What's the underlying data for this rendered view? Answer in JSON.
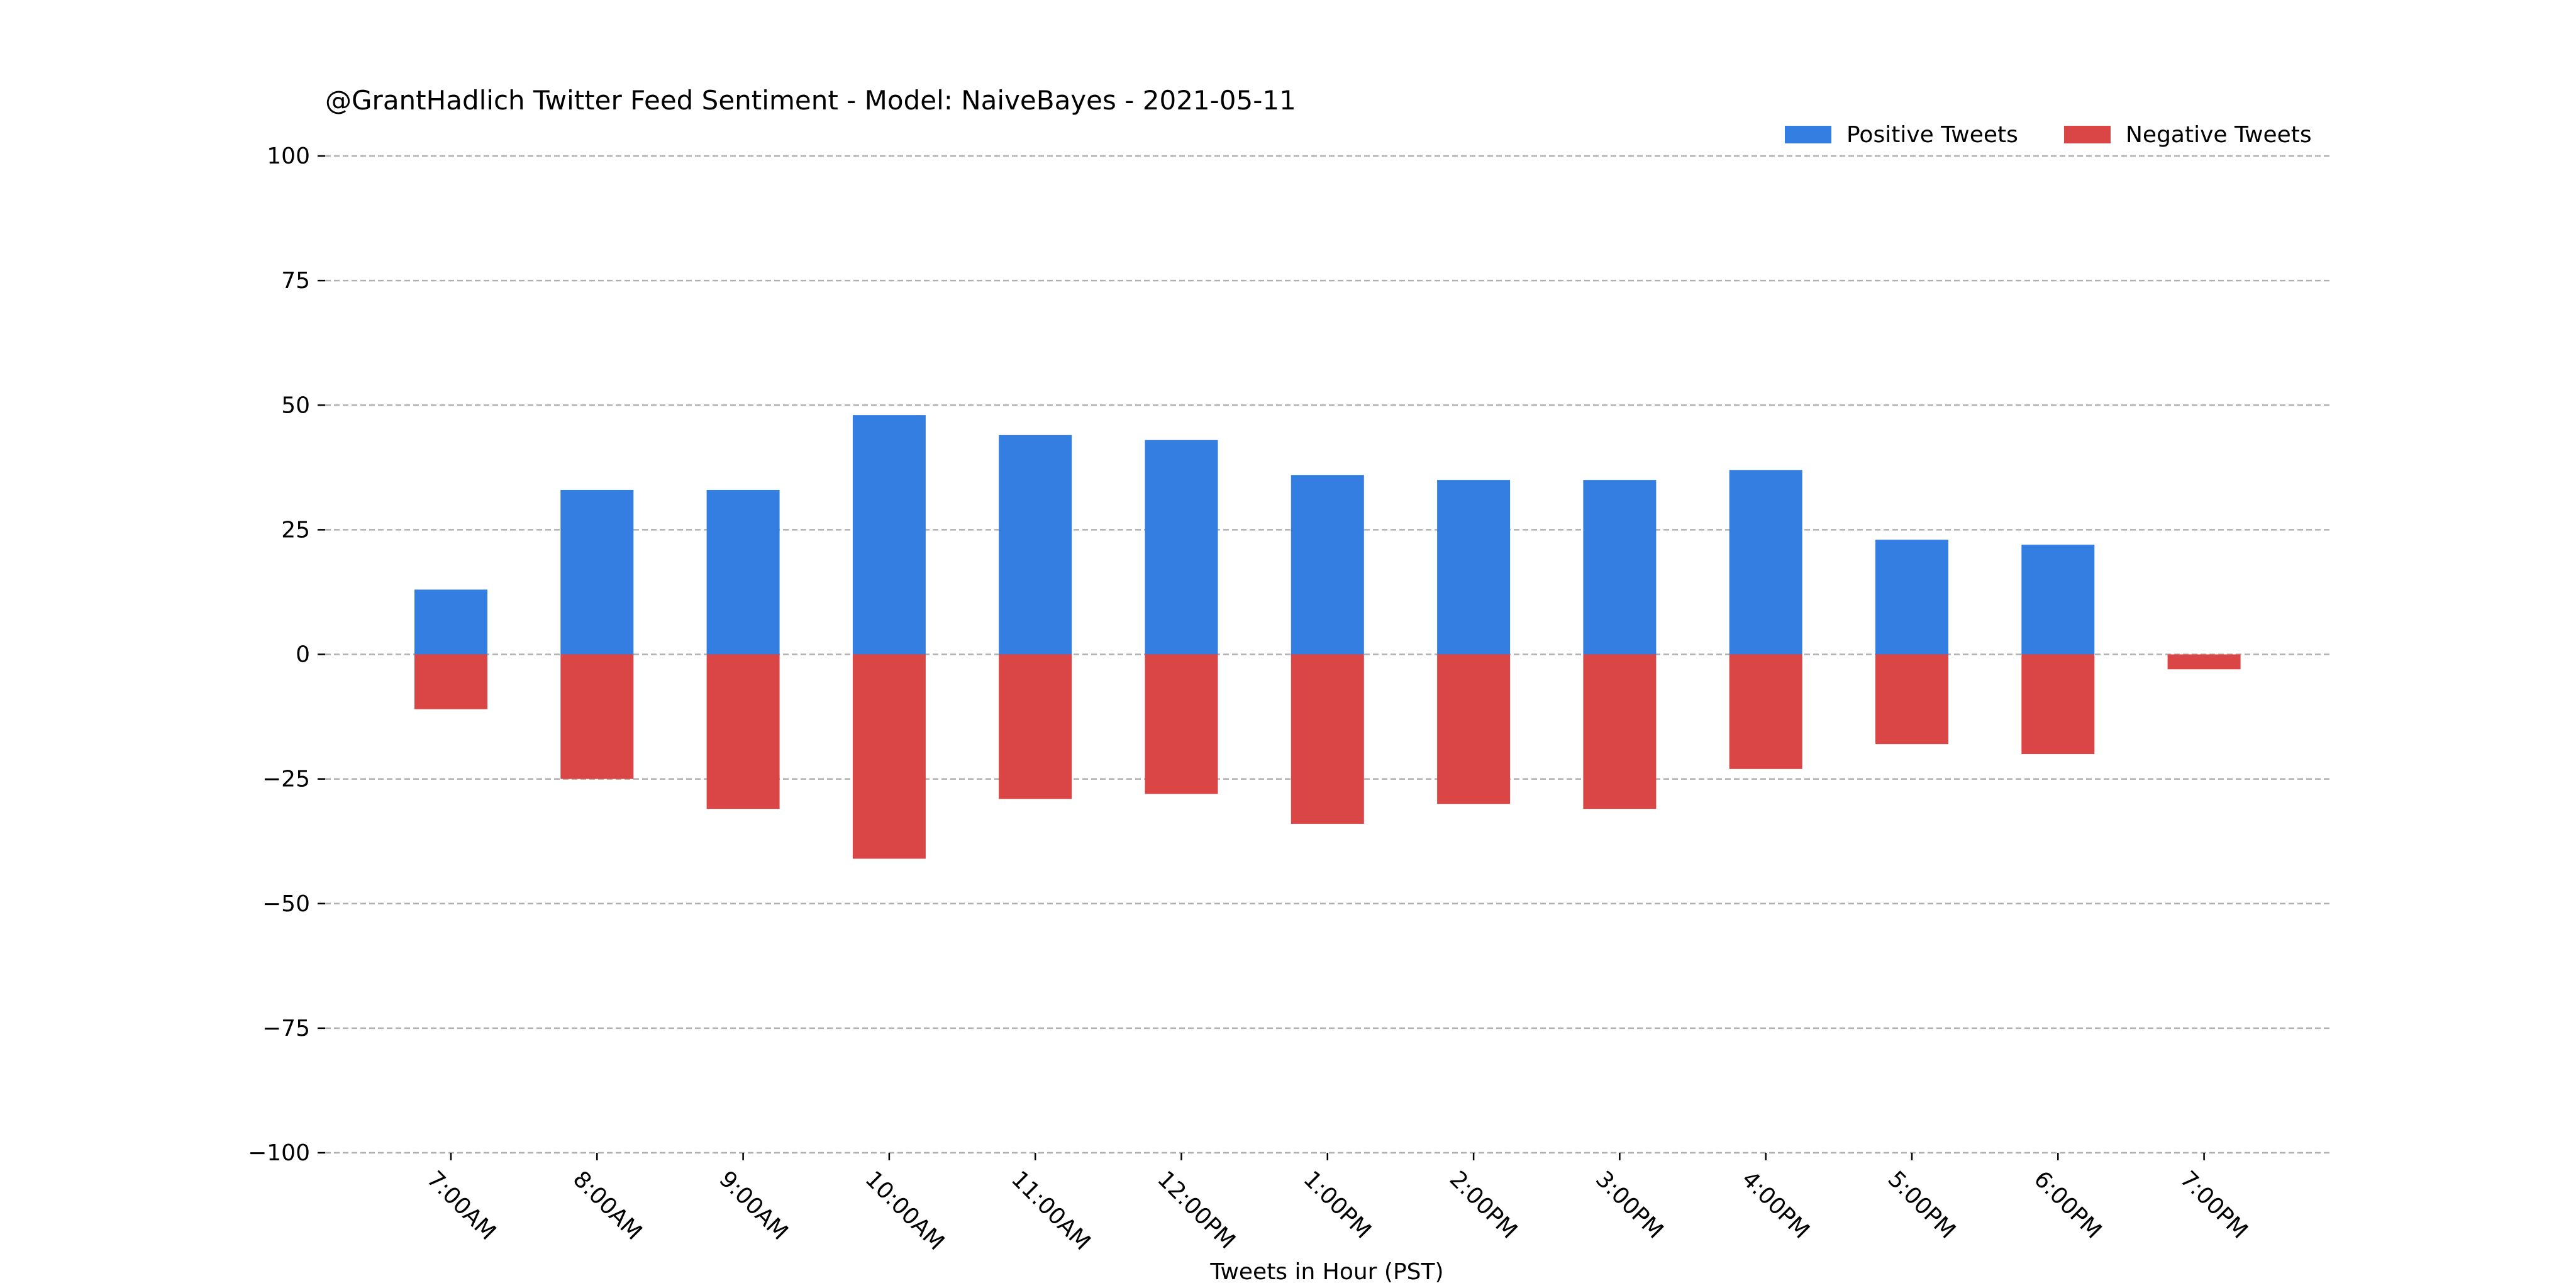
{
  "chart_data": {
    "type": "bar",
    "title": "@GrantHadlich Twitter Feed Sentiment - Model: NaiveBayes - 2021-05-11",
    "xlabel": "Tweets in Hour (PST)",
    "ylabel": "",
    "ylim": [
      -100,
      100
    ],
    "yticks": [
      100,
      75,
      50,
      25,
      0,
      -25,
      -50,
      -75,
      -100
    ],
    "ytick_labels": [
      "100",
      "75",
      "50",
      "25",
      "0",
      "−25",
      "−50",
      "−75",
      "−100"
    ],
    "grid": true,
    "legend_position": "top-right",
    "categories": [
      "7:00AM",
      "8:00AM",
      "9:00AM",
      "10:00AM",
      "11:00AM",
      "12:00PM",
      "1:00PM",
      "2:00PM",
      "3:00PM",
      "4:00PM",
      "5:00PM",
      "6:00PM",
      "7:00PM"
    ],
    "series": [
      {
        "name": "Positive Tweets",
        "color": "#357ee1",
        "values": [
          13,
          33,
          33,
          48,
          44,
          43,
          36,
          35,
          35,
          37,
          23,
          22,
          0
        ]
      },
      {
        "name": "Negative Tweets",
        "color": "#da4646",
        "values": [
          -11,
          -25,
          -31,
          -41,
          -29,
          -28,
          -34,
          -30,
          -31,
          -23,
          -18,
          -20,
          -3
        ]
      }
    ]
  }
}
